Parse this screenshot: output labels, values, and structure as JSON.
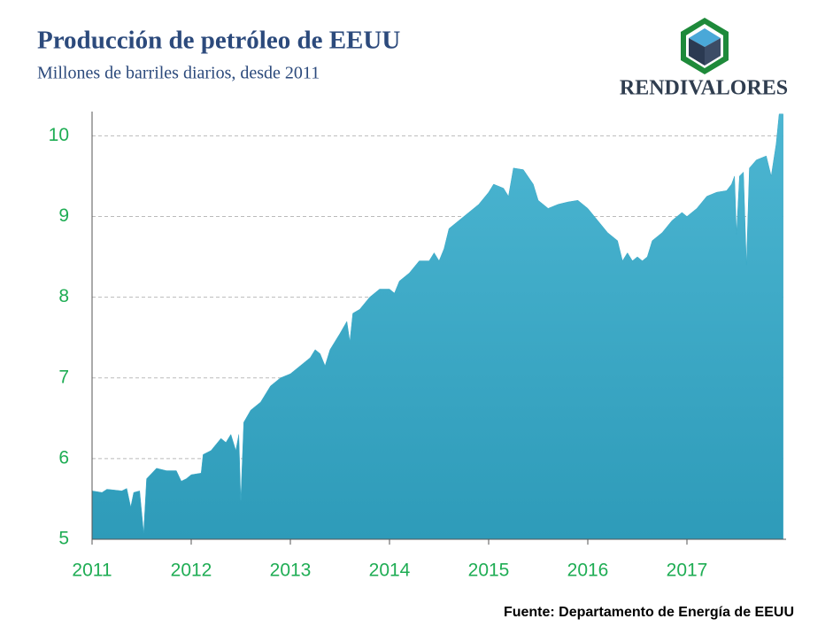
{
  "chart_data": {
    "type": "area",
    "title": "Producción de petróleo de EEUU",
    "subtitle": "Millones de barriles diarios, desde 2011",
    "brand": "RENDIVALORES",
    "source": "Fuente: Departamento de Energía de EEUU",
    "color": "#3aa8c6",
    "grid": true,
    "x": [
      2011.0,
      2011.1,
      2011.15,
      2011.3,
      2011.35,
      2011.39,
      2011.42,
      2011.48,
      2011.52,
      2011.55,
      2011.65,
      2011.75,
      2011.85,
      2011.9,
      2011.95,
      2012.0,
      2012.1,
      2012.12,
      2012.2,
      2012.3,
      2012.35,
      2012.4,
      2012.45,
      2012.48,
      2012.5,
      2012.53,
      2012.6,
      2012.7,
      2012.8,
      2012.9,
      2013.0,
      2013.1,
      2013.2,
      2013.25,
      2013.3,
      2013.35,
      2013.4,
      2013.5,
      2013.57,
      2013.6,
      2013.63,
      2013.7,
      2013.8,
      2013.9,
      2014.0,
      2014.05,
      2014.1,
      2014.2,
      2014.3,
      2014.4,
      2014.45,
      2014.5,
      2014.55,
      2014.6,
      2014.7,
      2014.8,
      2014.9,
      2015.0,
      2015.05,
      2015.15,
      2015.2,
      2015.25,
      2015.35,
      2015.45,
      2015.5,
      2015.6,
      2015.7,
      2015.8,
      2015.9,
      2016.0,
      2016.1,
      2016.2,
      2016.3,
      2016.35,
      2016.4,
      2016.45,
      2016.5,
      2016.55,
      2016.6,
      2016.65,
      2016.75,
      2016.85,
      2016.95,
      2017.0,
      2017.1,
      2017.2,
      2017.3,
      2017.4,
      2017.45,
      2017.48,
      2017.5,
      2017.53,
      2017.57,
      2017.6,
      2017.63,
      2017.7,
      2017.8,
      2017.85,
      2017.9,
      2017.93,
      2017.97
    ],
    "values": [
      5.6,
      5.58,
      5.62,
      5.6,
      5.63,
      5.4,
      5.58,
      5.6,
      5.08,
      5.75,
      5.88,
      5.85,
      5.85,
      5.72,
      5.75,
      5.8,
      5.82,
      6.05,
      6.1,
      6.25,
      6.2,
      6.3,
      6.1,
      6.3,
      5.48,
      6.45,
      6.6,
      6.7,
      6.9,
      7.0,
      7.05,
      7.15,
      7.25,
      7.35,
      7.3,
      7.15,
      7.35,
      7.55,
      7.7,
      7.45,
      7.8,
      7.85,
      8.0,
      8.1,
      8.1,
      8.05,
      8.2,
      8.3,
      8.45,
      8.45,
      8.55,
      8.45,
      8.6,
      8.85,
      8.95,
      9.05,
      9.15,
      9.3,
      9.4,
      9.35,
      9.25,
      9.6,
      9.58,
      9.4,
      9.2,
      9.1,
      9.15,
      9.18,
      9.2,
      9.1,
      8.95,
      8.8,
      8.7,
      8.45,
      8.55,
      8.45,
      8.5,
      8.45,
      8.5,
      8.7,
      8.8,
      8.95,
      9.05,
      9.0,
      9.1,
      9.25,
      9.3,
      9.32,
      9.4,
      9.5,
      8.78,
      9.5,
      9.55,
      8.4,
      9.6,
      9.7,
      9.75,
      9.5,
      9.9,
      10.27,
      10.27
    ],
    "xlim": [
      2011,
      2018
    ],
    "xticks": [
      2011,
      2012,
      2013,
      2014,
      2015,
      2016,
      2017
    ],
    "ylim": [
      5,
      10.3
    ],
    "yticks": [
      5,
      6,
      7,
      8,
      9,
      10
    ]
  }
}
